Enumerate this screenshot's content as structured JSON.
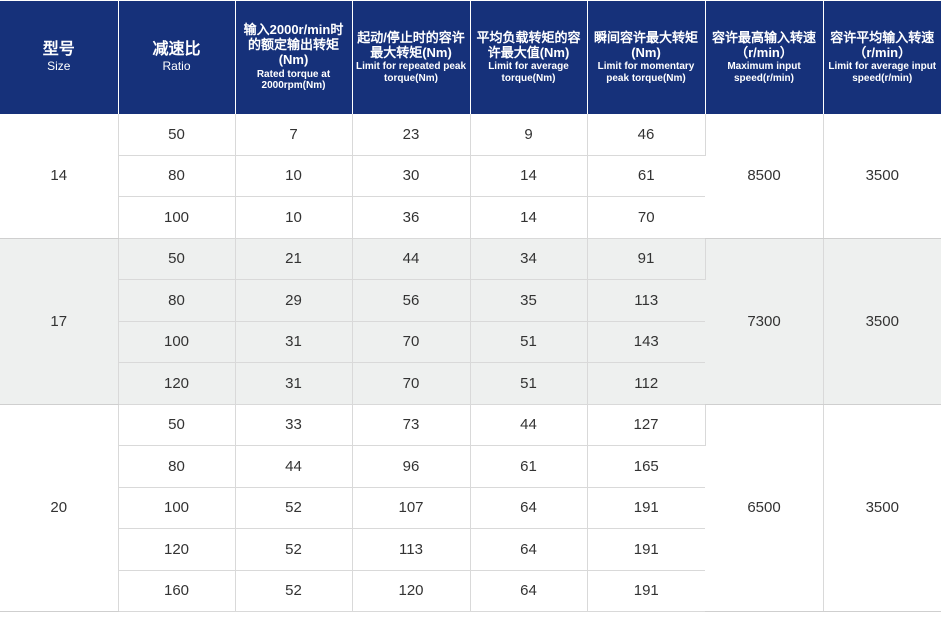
{
  "headers": [
    {
      "cn": "型号",
      "en": "Size"
    },
    {
      "cn": "减速比",
      "en": "Ratio"
    },
    {
      "cn": "输入2000r/min时的额定输出转矩(Nm)",
      "en": "Rated torque at 2000rpm(Nm)"
    },
    {
      "cn": "起动/停止时的容许最大转矩(Nm)",
      "en": "Limit for repeated peak torque(Nm)"
    },
    {
      "cn": "平均负载转矩的容许最大值(Nm)",
      "en": "Limit for average torque(Nm)"
    },
    {
      "cn": "瞬间容许最大转矩(Nm)",
      "en": "Limit for momentary peak torque(Nm)"
    },
    {
      "cn": "容许最高输入转速（r/min）",
      "en": "Maximum input speed(r/min)"
    },
    {
      "cn": "容许平均输入转速（r/min）",
      "en": "Limit for average input speed(r/min)"
    }
  ],
  "groups": [
    {
      "size": "14",
      "max_speed": "8500",
      "avg_speed": "3500",
      "rows": [
        {
          "ratio": "50",
          "rated": "7",
          "repeated": "23",
          "average": "9",
          "momentary": "46"
        },
        {
          "ratio": "80",
          "rated": "10",
          "repeated": "30",
          "average": "14",
          "momentary": "61"
        },
        {
          "ratio": "100",
          "rated": "10",
          "repeated": "36",
          "average": "14",
          "momentary": "70"
        }
      ]
    },
    {
      "size": "17",
      "max_speed": "7300",
      "avg_speed": "3500",
      "rows": [
        {
          "ratio": "50",
          "rated": "21",
          "repeated": "44",
          "average": "34",
          "momentary": "91"
        },
        {
          "ratio": "80",
          "rated": "29",
          "repeated": "56",
          "average": "35",
          "momentary": "113"
        },
        {
          "ratio": "100",
          "rated": "31",
          "repeated": "70",
          "average": "51",
          "momentary": "143"
        },
        {
          "ratio": "120",
          "rated": "31",
          "repeated": "70",
          "average": "51",
          "momentary": "112"
        }
      ]
    },
    {
      "size": "20",
      "max_speed": "6500",
      "avg_speed": "3500",
      "rows": [
        {
          "ratio": "50",
          "rated": "33",
          "repeated": "73",
          "average": "44",
          "momentary": "127"
        },
        {
          "ratio": "80",
          "rated": "44",
          "repeated": "96",
          "average": "61",
          "momentary": "165"
        },
        {
          "ratio": "100",
          "rated": "52",
          "repeated": "107",
          "average": "64",
          "momentary": "191"
        },
        {
          "ratio": "120",
          "rated": "52",
          "repeated": "113",
          "average": "64",
          "momentary": "191"
        },
        {
          "ratio": "160",
          "rated": "52",
          "repeated": "120",
          "average": "64",
          "momentary": "191"
        }
      ]
    }
  ],
  "colors": {
    "header_bg": "#16317a",
    "alt_group_bg": "#eef0ef",
    "grid": "#d9d9d9"
  }
}
